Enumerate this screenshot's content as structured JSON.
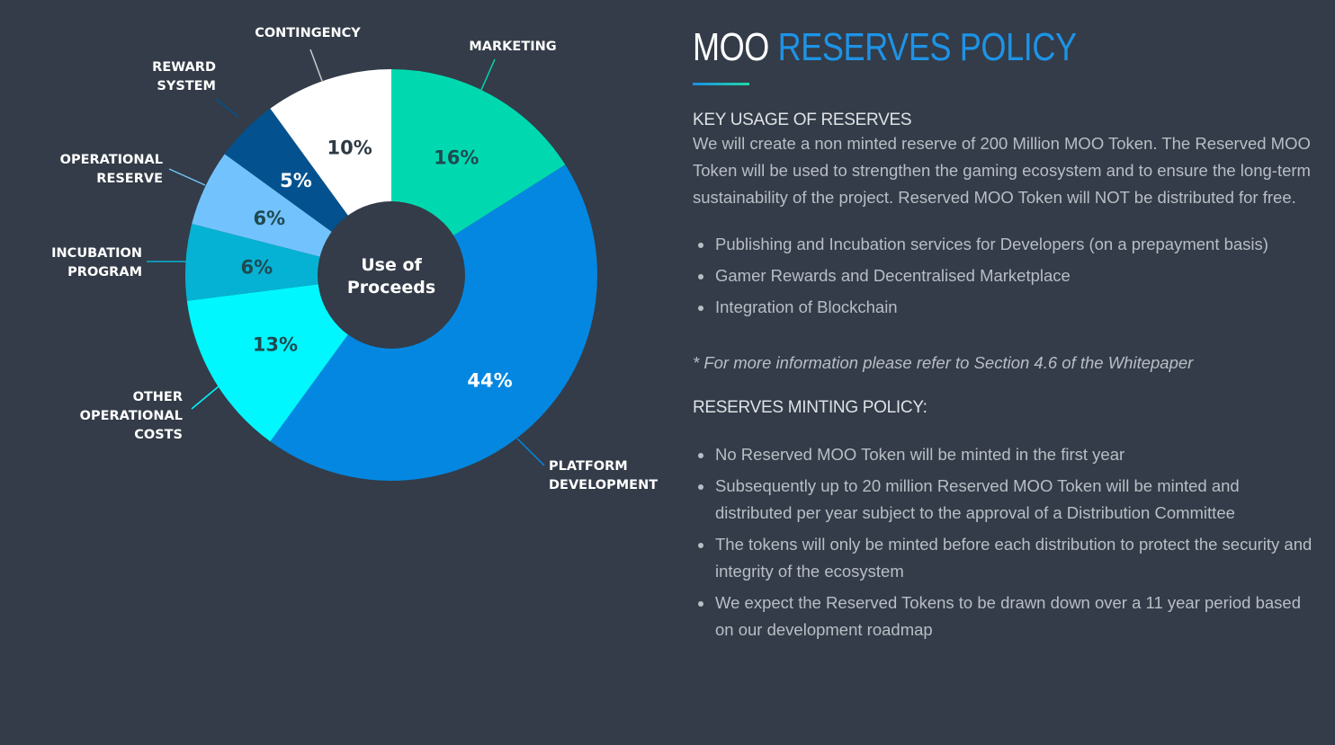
{
  "chart_data": {
    "type": "pie",
    "variant": "donut",
    "center_label": [
      "Use of",
      "Proceeds"
    ],
    "slices": [
      {
        "name": "MARKETING",
        "label_lines": [
          "MARKETING"
        ],
        "value": 16,
        "display": "16%",
        "color": "#00d9b0",
        "text_color": "#1f4a52"
      },
      {
        "name": "PLATFORM DEVELOPMENT",
        "label_lines": [
          "PLATFORM",
          "DEVELOPMENT"
        ],
        "value": 44,
        "display": "44%",
        "color": "#0487e1",
        "text_color": "#ffffff"
      },
      {
        "name": "OTHER OPERATIONAL COSTS",
        "label_lines": [
          "OTHER",
          "OPERATIONAL",
          "COSTS"
        ],
        "value": 13,
        "display": "13%",
        "color": "#00f7fd",
        "text_color": "#1f4a52"
      },
      {
        "name": "INCUBATION PROGRAM",
        "label_lines": [
          "INCUBATION",
          "PROGRAM"
        ],
        "value": 6,
        "display": "6%",
        "color": "#06b2d3",
        "text_color": "#1f4a52"
      },
      {
        "name": "OPERATIONAL RESERVE",
        "label_lines": [
          "OPERATIONAL",
          "RESERVE"
        ],
        "value": 6,
        "display": "6%",
        "color": "#72c3fd",
        "text_color": "#1f4a52"
      },
      {
        "name": "REWARD SYSTEM",
        "label_lines": [
          "REWARD",
          "SYSTEM"
        ],
        "value": 5,
        "display": "5%",
        "color": "#03528f",
        "text_color": "#ffffff"
      },
      {
        "name": "CONTINGENCY",
        "label_lines": [
          "CONTINGENCY"
        ],
        "value": 10,
        "display": "10%",
        "color": "#ffffff",
        "text_color": "#2e3a44"
      }
    ],
    "start_angle": "12 o'clock",
    "direction": "clockwise",
    "legend": "callout labels around chart"
  },
  "policy": {
    "title_white": "MOO",
    "title_blue": "RESERVES POLICY",
    "key_usage_heading": "KEY USAGE OF RESERVES",
    "key_usage_text": "We will create a non minted reserve of 200 Million MOO Token. The Reserved MOO Token will be used to strengthen the gaming ecosystem and to ensure the long-term sustainability of the project. Reserved MOO Token will NOT be distributed for free.",
    "key_usage_items": [
      "Publishing and Incubation services for Developers (on a prepayment basis)",
      "Gamer Rewards and Decentralised Marketplace",
      "Integration of Blockchain"
    ],
    "note": "* For more information please refer to Section 4.6 of the Whitepaper",
    "minting_heading": "RESERVES MINTING POLICY:",
    "minting_items": [
      "No Reserved MOO Token will be minted in the first year",
      "Subsequently up to 20 million Reserved MOO Token will be minted and distributed per year subject to the approval of a Distribution Committee",
      "The tokens will only be minted before each distribution to protect the security and integrity of the ecosystem",
      "We expect the Reserved Tokens to be drawn down over a 11 year period based on our development roadmap"
    ]
  }
}
